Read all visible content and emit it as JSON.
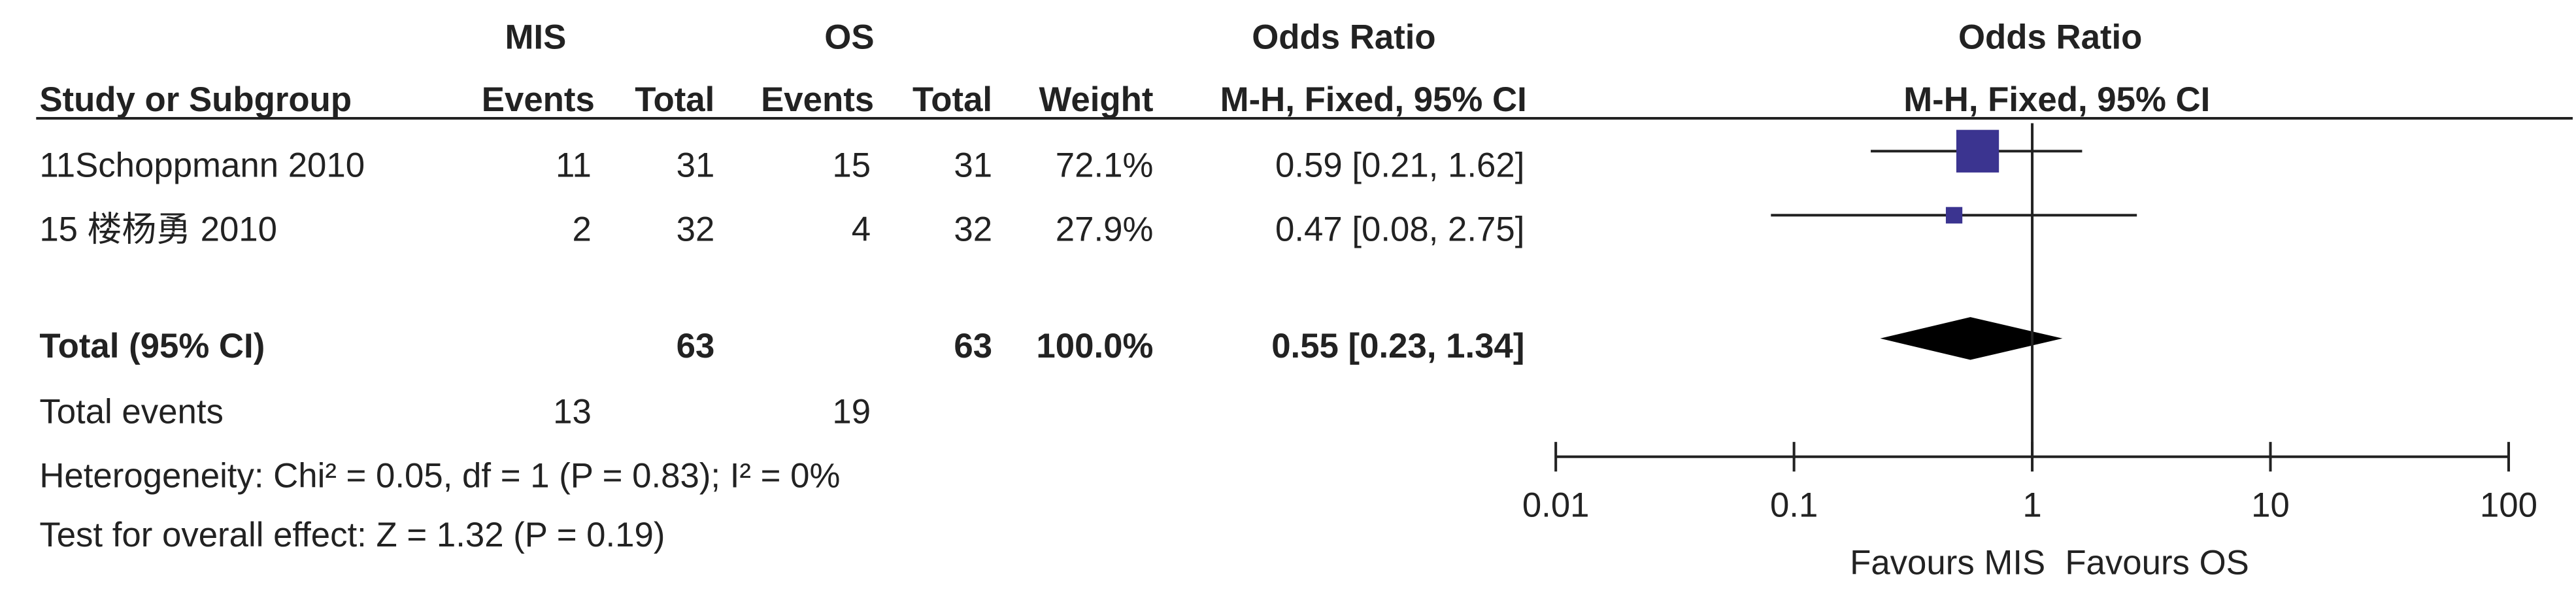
{
  "chart_data": {
    "type": "forest",
    "group_headers": [
      "MIS",
      "OS"
    ],
    "effect_header": "Odds Ratio",
    "columns": [
      "Study or Subgroup",
      "Events",
      "Total",
      "Events",
      "Total",
      "Weight",
      "M-H, Fixed, 95% CI"
    ],
    "plot_title": "Odds Ratio",
    "plot_subtitle": "M-H, Fixed, 95% CI",
    "studies": [
      {
        "name": "11Schoppmann 2010",
        "events_1": 11,
        "total_1": 31,
        "events_2": 15,
        "total_2": 31,
        "weight": 72.1,
        "weight_label": "72.1%",
        "value": 0.59,
        "ci_low": 0.21,
        "ci_high": 1.62,
        "value_label": "0.59 [0.21, 1.62]"
      },
      {
        "name": "15 楼杨勇 2010",
        "events_1": 2,
        "total_1": 32,
        "events_2": 4,
        "total_2": 32,
        "weight": 27.9,
        "weight_label": "27.9%",
        "value": 0.47,
        "ci_low": 0.08,
        "ci_high": 2.75,
        "value_label": "0.47 [0.08, 2.75]"
      }
    ],
    "total": {
      "name": "Total (95% CI)",
      "total_1": 63,
      "total_2": 63,
      "weight_label": "100.0%",
      "value": 0.55,
      "ci_low": 0.23,
      "ci_high": 1.34,
      "value_label": "0.55 [0.23, 1.34]"
    },
    "total_events": {
      "name": "Total events",
      "events_1": 13,
      "events_2": 19
    },
    "heterogeneity": "Heterogeneity: Chi² = 0.05, df = 1 (P = 0.83); I² = 0%",
    "overall_effect": "Test for overall effect: Z = 1.32 (P = 0.19)",
    "x_scale": "log",
    "xlim": [
      0.01,
      100
    ],
    "xticks": [
      0.01,
      0.1,
      1,
      10,
      100
    ],
    "reference_line": 1,
    "favours": [
      "Favours MIS",
      "Favours OS"
    ],
    "box_color": "#3b3490",
    "diamond_color": "#000000"
  }
}
